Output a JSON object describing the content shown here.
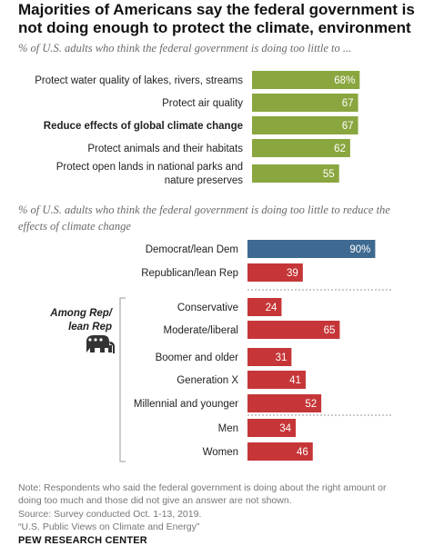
{
  "title": "Majorities of Americans say the federal government is not doing enough to protect the climate, environment",
  "colors": {
    "green": "#8aa63f",
    "blue": "#3e6a91",
    "red": "#c63638",
    "label": "#222222",
    "value_on_bar": "#ffffff",
    "value_dark": "#333333"
  },
  "chart_data": [
    {
      "type": "bar",
      "orientation": "horizontal",
      "subtitle": "% of U.S. adults who think the federal government is doing too little to ...",
      "categories": [
        "Protect water quality of lakes, rivers, streams",
        "Protect air quality",
        "Reduce effects of global climate change",
        "Protect animals and their habitats",
        "Protect open lands in national parks and nature preserves"
      ],
      "label_lines": [
        [
          "Protect water quality of lakes, rivers, streams"
        ],
        [
          "Protect air quality"
        ],
        [
          "Reduce effects of global climate change"
        ],
        [
          "Protect animals and their habitats"
        ],
        [
          "Protect open lands in national parks and",
          "nature preserves"
        ]
      ],
      "values": [
        68,
        67,
        67,
        62,
        55
      ],
      "value_labels": [
        "68%",
        "67",
        "67",
        "62",
        "55"
      ],
      "bold_category": "Reduce effects of global climate change",
      "color": "#8aa63f",
      "xlim": [
        0,
        100
      ],
      "axes_visible": false
    },
    {
      "type": "bar",
      "orientation": "horizontal",
      "subtitle": "% of U.S. adults who think the federal government is doing too little to reduce the effects of climate change",
      "categories": [
        "Democrat/lean Dem",
        "Republican/lean Rep",
        "Conservative",
        "Moderate/liberal",
        "Boomer and older",
        "Generation X",
        "Millennial and younger",
        "Men",
        "Women"
      ],
      "values": [
        90,
        39,
        24,
        65,
        31,
        41,
        52,
        34,
        46
      ],
      "value_labels": [
        "90%",
        "39",
        "24",
        "65",
        "31",
        "41",
        "52",
        "34",
        "46"
      ],
      "colors": [
        "#3e6a91",
        "#c63638",
        "#c63638",
        "#c63638",
        "#c63638",
        "#c63638",
        "#c63638",
        "#c63638",
        "#c63638"
      ],
      "group_label": [
        "Among Rep/",
        "lean Rep"
      ],
      "group_icon": "elephant-icon",
      "xlim": [
        0,
        100
      ],
      "axes_visible": false
    }
  ],
  "notes": {
    "note_line1": "Note: Respondents who said the federal government is doing about the right amount or",
    "note_line2": "doing too much and those did not give an answer are not shown.",
    "source": "Source: Survey conducted Oct. 1-13, 2019.",
    "report": "“U.S. Public Views on Climate and Energy”"
  },
  "brand": "PEW RESEARCH CENTER"
}
